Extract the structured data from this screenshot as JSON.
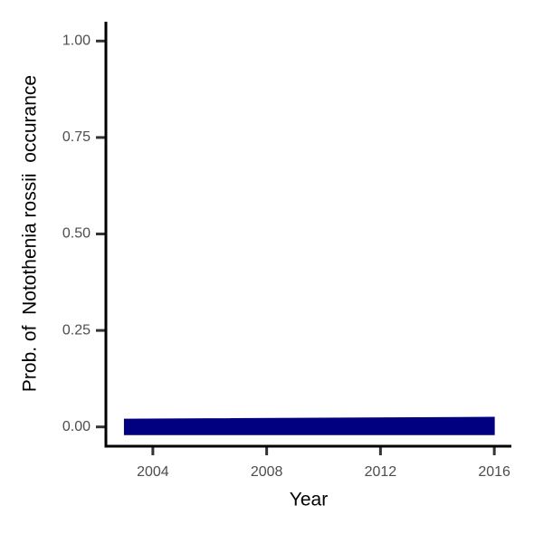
{
  "chart_data": {
    "type": "ribbon",
    "x_label": "Year",
    "y_label": "Prob. of  Notothenia rossii  occurance",
    "x": [
      2003,
      2016
    ],
    "lower": [
      -0.02,
      -0.02
    ],
    "upper": [
      0.02,
      0.025
    ],
    "color": "#000080",
    "xlim": [
      2002.35,
      2016.6
    ],
    "xticks": [
      2004,
      2008,
      2012,
      2016
    ],
    "ylim": [
      -0.05,
      1.05
    ],
    "yticks": [
      {
        "value": 0,
        "label": "0.00"
      },
      {
        "value": 0.25,
        "label": "0.25"
      },
      {
        "value": 0.5,
        "label": "0.50"
      },
      {
        "value": 0.75,
        "label": "0.75"
      },
      {
        "value": 1,
        "label": "1.00"
      }
    ],
    "grid": false
  }
}
